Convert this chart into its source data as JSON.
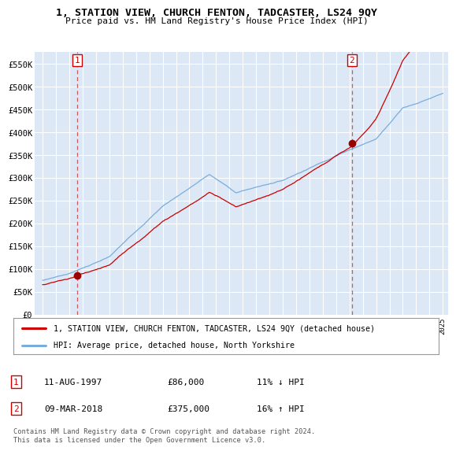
{
  "title": "1, STATION VIEW, CHURCH FENTON, TADCASTER, LS24 9QY",
  "subtitle": "Price paid vs. HM Land Registry's House Price Index (HPI)",
  "ylim": [
    0,
    575000
  ],
  "yticks": [
    0,
    50000,
    100000,
    150000,
    200000,
    250000,
    300000,
    350000,
    400000,
    450000,
    500000,
    550000
  ],
  "ytick_labels": [
    "£0",
    "£50K",
    "£100K",
    "£150K",
    "£200K",
    "£250K",
    "£300K",
    "£350K",
    "£400K",
    "£450K",
    "£500K",
    "£550K"
  ],
  "plot_bg_color": "#dce8f5",
  "grid_color": "#ffffff",
  "sale1_date": 1997.6,
  "sale1_price": 86000,
  "sale1_text": "11-AUG-1997",
  "sale1_pct": "11% ↓ HPI",
  "sale2_date": 2018.18,
  "sale2_price": 375000,
  "sale2_text": "09-MAR-2018",
  "sale2_pct": "16% ↑ HPI",
  "legend_line1": "1, STATION VIEW, CHURCH FENTON, TADCASTER, LS24 9QY (detached house)",
  "legend_line2": "HPI: Average price, detached house, North Yorkshire",
  "footer": "Contains HM Land Registry data © Crown copyright and database right 2024.\nThis data is licensed under the Open Government Licence v3.0.",
  "line_color_hpi": "#7aaddb",
  "line_color_price": "#cc0000",
  "marker_color": "#990000",
  "dashed_line_color": "#cc3333"
}
